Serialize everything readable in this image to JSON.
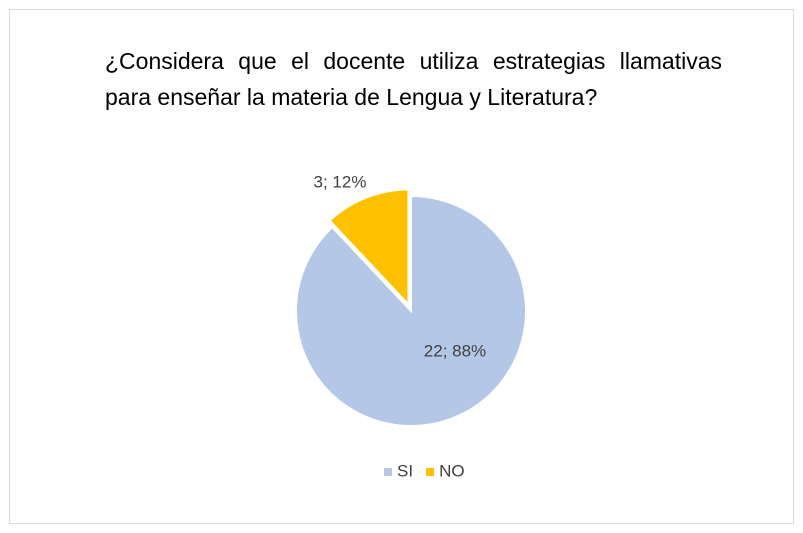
{
  "chart_data": {
    "type": "pie",
    "title": "¿Considera que el docente utiliza estrategias llamativas para enseñar la materia de Lengua y Literatura?",
    "categories": [
      "SI",
      "NO"
    ],
    "values": [
      22,
      3
    ],
    "value_labels": [
      "22; 88%",
      "3; 12%"
    ],
    "colors": [
      "#b4c7e7",
      "#ffc000"
    ],
    "legend": "bottom"
  }
}
